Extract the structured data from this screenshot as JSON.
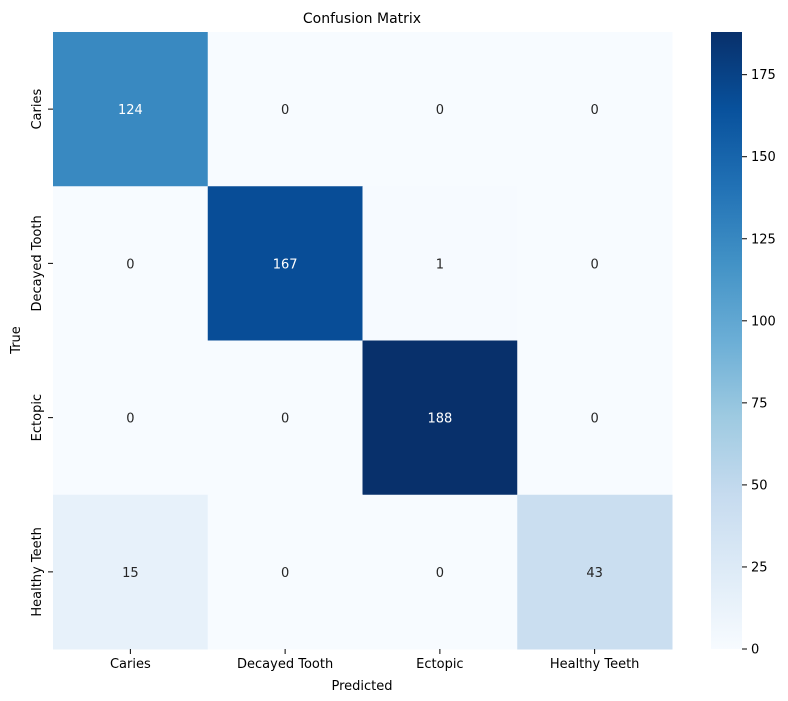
{
  "chart_data": {
    "type": "heatmap",
    "title": "Confusion Matrix",
    "xlabel": "Predicted",
    "ylabel": "True",
    "x_categories": [
      "Caries",
      "Decayed Tooth",
      "Ectopic",
      "Healthy Teeth"
    ],
    "y_categories": [
      "Caries",
      "Decayed Tooth",
      "Ectopic",
      "Healthy Teeth"
    ],
    "values": [
      [
        124,
        0,
        0,
        0
      ],
      [
        0,
        167,
        1,
        0
      ],
      [
        0,
        0,
        188,
        0
      ],
      [
        15,
        0,
        0,
        43
      ]
    ],
    "colormap": "Blues",
    "colorbar": {
      "min": 0,
      "max": 188,
      "ticks": [
        0,
        25,
        50,
        75,
        100,
        125,
        150,
        175
      ]
    },
    "grid": false,
    "legend": "colorbar-right"
  }
}
